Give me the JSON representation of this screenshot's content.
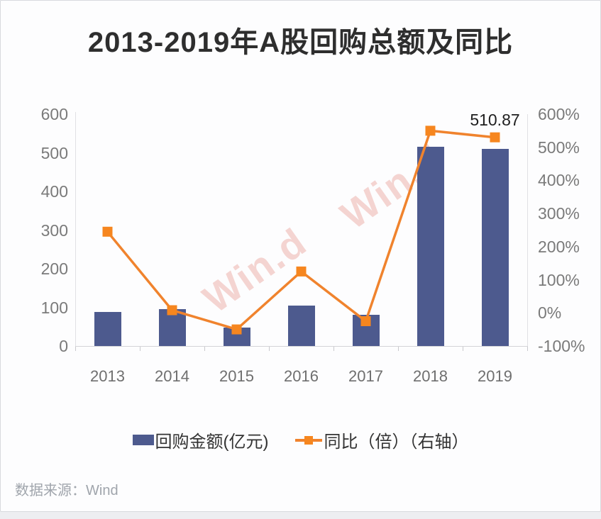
{
  "page": {
    "title": "2013-2019年A股回购总额及同比",
    "source": "数据来源：Wind",
    "watermark": "Win.d"
  },
  "colors": {
    "bar": "#4d5a8e",
    "line": "#f0832d",
    "marker": "#f6861f",
    "title_text": "#2e2e2e",
    "axis_text": "#7a7a7a",
    "watermark": "#f4d4d1",
    "source_text": "#a0a5ac"
  },
  "chart_data": {
    "type": "bar+line",
    "title": "2013-2019年A股回购总额及同比",
    "categories": [
      "2013",
      "2014",
      "2015",
      "2016",
      "2017",
      "2018",
      "2019"
    ],
    "series": [
      {
        "name": "回购金额(亿元)",
        "type": "bar",
        "axis": "left",
        "values": [
          87.5,
          95,
          47,
          105,
          80,
          515,
          510.87
        ]
      },
      {
        "name": "同比（倍）（右轴）",
        "type": "line",
        "axis": "right",
        "values_pct": [
          245,
          8,
          -50,
          125,
          -25,
          550,
          530
        ]
      }
    ],
    "left_axis": {
      "ticks": [
        "600",
        "500",
        "400",
        "300",
        "200",
        "100",
        "0"
      ],
      "range": [
        0,
        600
      ]
    },
    "right_axis": {
      "ticks": [
        "600%",
        "500%",
        "400%",
        "300%",
        "200%",
        "100%",
        "0%",
        "-100%"
      ],
      "range_pct": [
        -100,
        600
      ]
    },
    "data_label": {
      "series": "回购金额(亿元)",
      "category": "2019",
      "text": "510.87"
    },
    "grid": false,
    "legend_position": "bottom"
  }
}
